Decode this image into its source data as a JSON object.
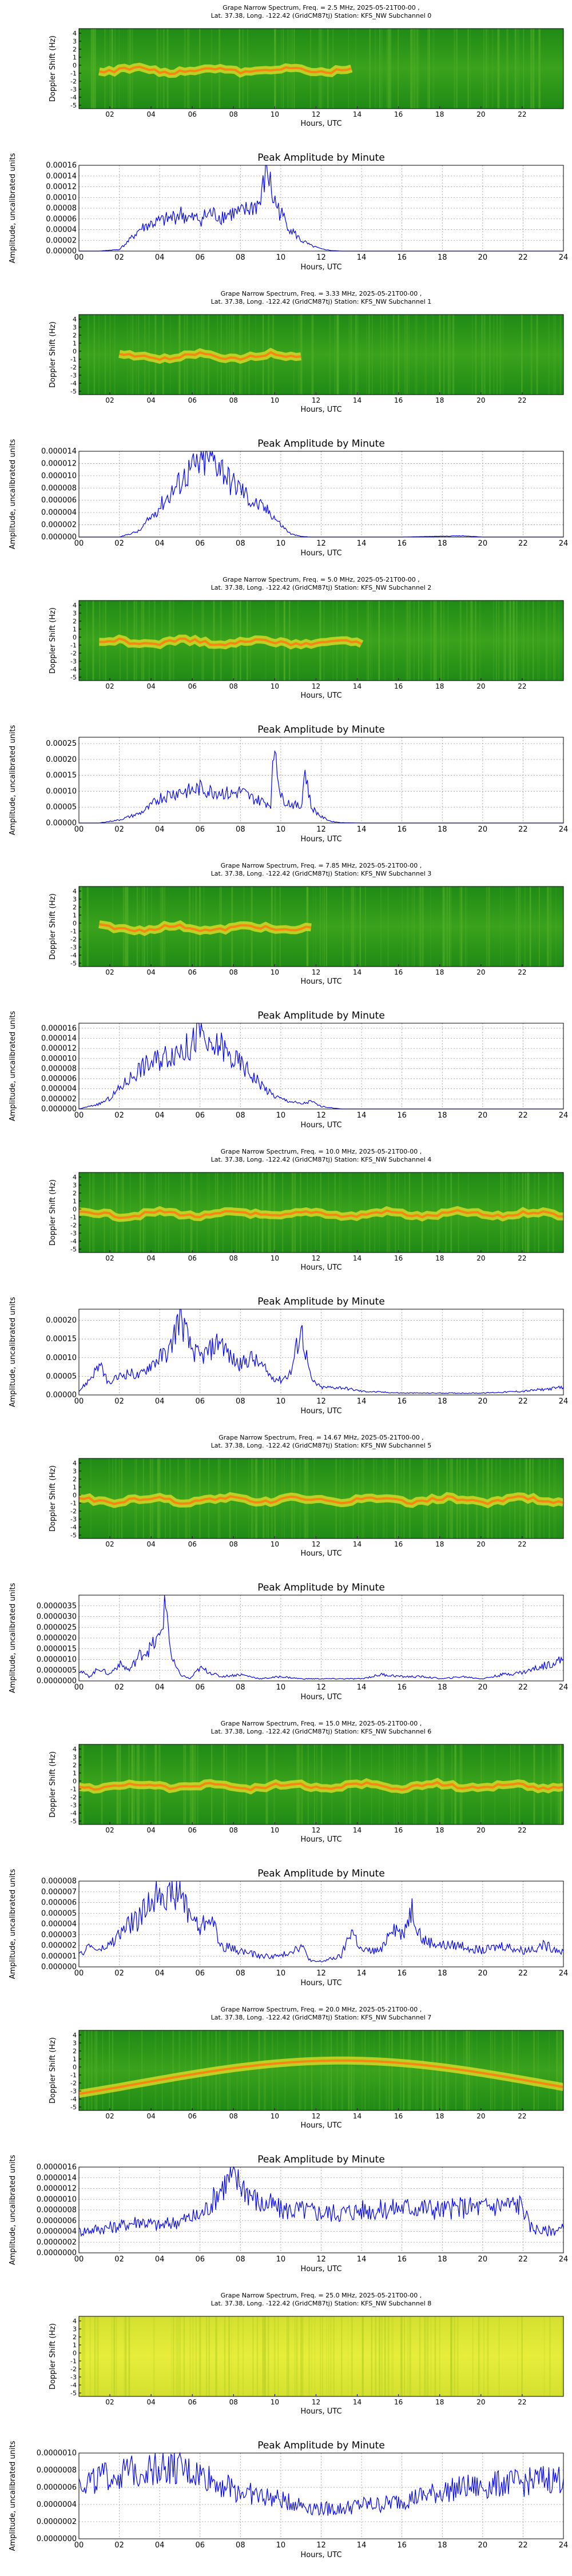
{
  "spectrogram_common": {
    "line2": "Lat.  37.38, Long. -122.42 (GridCM87tj) Station: KFS_NW",
    "ylabel": "Doppler Shift (Hz)",
    "xlabel": "Hours, UTC",
    "yticks": [
      "-5",
      "-4",
      "-3",
      "-2",
      "-1",
      "0",
      "1",
      "2",
      "3",
      "4"
    ],
    "xticks": [
      "02",
      "04",
      "06",
      "08",
      "10",
      "12",
      "14",
      "16",
      "18",
      "20",
      "22"
    ]
  },
  "amplitude_common": {
    "title": "Peak Amplitude by Minute",
    "ylabel": "Amplitude, uncalibrated units",
    "xlabel": "Hours, UTC",
    "xticks": [
      "00",
      "02",
      "04",
      "06",
      "08",
      "10",
      "12",
      "14",
      "16",
      "18",
      "20",
      "22",
      "24"
    ]
  },
  "subchannels": [
    {
      "spectrogram_title": "Grape Narrow Spectrum, Freq. = 2.5 MHz, 2025-05-21T00-00 , Lat.  37.38, Long. -122.42 (GridCM87tj) Station: KFS_NW Subchannel 0",
      "title_line1": "Grape Narrow Spectrum, Freq. = 2.5 MHz, 2025-05-21T00-00 ,",
      "title_suffix": "Subchannel 0",
      "amp_yticks": [
        "0.00000",
        "0.00002",
        "0.00004",
        "0.00006",
        "0.00008",
        "0.00010",
        "0.00012",
        "0.00014",
        "0.00016"
      ],
      "amp_ymax": 0.00016
    },
    {
      "spectrogram_title": "Grape Narrow Spectrum, Freq. = 3.33 MHz, 2025-05-21T00-00 , Lat.  37.38, Long. -122.42 (GridCM87tj) Station: KFS_NW Subchannel 1",
      "title_line1": "Grape Narrow Spectrum, Freq. = 3.33 MHz, 2025-05-21T00-00 ,",
      "title_suffix": "Subchannel 1",
      "amp_yticks": [
        "0.000000",
        "0.000002",
        "0.000004",
        "0.000006",
        "0.000008",
        "0.000010",
        "0.000012",
        "0.000014"
      ],
      "amp_ymax": 1.4e-05
    },
    {
      "spectrogram_title": "Grape Narrow Spectrum, Freq. = 5.0 MHz, 2025-05-21T00-00 , Lat.  37.38, Long. -122.42 (GridCM87tj) Station: KFS_NW Subchannel 2",
      "title_line1": "Grape Narrow Spectrum, Freq. = 5.0 MHz, 2025-05-21T00-00 ,",
      "title_suffix": "Subchannel 2",
      "amp_yticks": [
        "0.00000",
        "0.00005",
        "0.00010",
        "0.00015",
        "0.00020",
        "0.00025"
      ],
      "amp_ymax": 0.00027
    },
    {
      "spectrogram_title": "Grape Narrow Spectrum, Freq. = 7.85 MHz, 2025-05-21T00-00 , Lat.  37.38, Long. -122.42 (GridCM87tj) Station: KFS_NW Subchannel 3",
      "title_line1": "Grape Narrow Spectrum, Freq. = 7.85 MHz, 2025-05-21T00-00 ,",
      "title_suffix": "Subchannel 3",
      "amp_yticks": [
        "0.000000",
        "0.000002",
        "0.000004",
        "0.000006",
        "0.000008",
        "0.000010",
        "0.000012",
        "0.000014",
        "0.000016"
      ],
      "amp_ymax": 1.7e-05
    },
    {
      "spectrogram_title": "Grape Narrow Spectrum, Freq. = 10.0 MHz, 2025-05-21T00-00 , Lat.  37.38, Long. -122.42 (GridCM87tj) Station: KFS_NW Subchannel 4",
      "title_line1": "Grape Narrow Spectrum, Freq. = 10.0 MHz, 2025-05-21T00-00 ,",
      "title_suffix": "Subchannel 4",
      "amp_yticks": [
        "0.00000",
        "0.00005",
        "0.00010",
        "0.00015",
        "0.00020"
      ],
      "amp_ymax": 0.00023
    },
    {
      "spectrogram_title": "Grape Narrow Spectrum, Freq. = 14.67 MHz, 2025-05-21T00-00 , Lat.  37.38, Long. -122.42 (GridCM87tj) Station: KFS_NW Subchannel 5",
      "title_line1": "Grape Narrow Spectrum, Freq. = 14.67 MHz, 2025-05-21T00-00 ,",
      "title_suffix": "Subchannel 5",
      "amp_yticks": [
        "0.0000000",
        "0.0000005",
        "0.0000010",
        "0.0000015",
        "0.0000020",
        "0.0000025",
        "0.0000030",
        "0.0000035"
      ],
      "amp_ymax": 4e-06
    },
    {
      "spectrogram_title": "Grape Narrow Spectrum, Freq. = 15.0 MHz, 2025-05-21T00-00 , Lat.  37.38, Long. -122.42 (GridCM87tj) Station: KFS_NW Subchannel 6",
      "title_line1": "Grape Narrow Spectrum, Freq. = 15.0 MHz, 2025-05-21T00-00 ,",
      "title_suffix": "Subchannel 6",
      "amp_yticks": [
        "0.000000",
        "0.000001",
        "0.000002",
        "0.000003",
        "0.000004",
        "0.000005",
        "0.000006",
        "0.000007",
        "0.000008"
      ],
      "amp_ymax": 8e-06
    },
    {
      "spectrogram_title": "Grape Narrow Spectrum, Freq. = 20.0 MHz, 2025-05-21T00-00 , Lat.  37.38, Long. -122.42 (GridCM87tj) Station: KFS_NW Subchannel 7",
      "title_line1": "Grape Narrow Spectrum, Freq. = 20.0 MHz, 2025-05-21T00-00 ,",
      "title_suffix": "Subchannel 7",
      "amp_yticks": [
        "0.0000000",
        "0.0000002",
        "0.0000004",
        "0.0000006",
        "0.0000008",
        "0.0000010",
        "0.0000012",
        "0.0000014",
        "0.0000016"
      ],
      "amp_ymax": 1.6e-06
    },
    {
      "spectrogram_title": "Grape Narrow Spectrum, Freq. = 25.0 MHz, 2025-05-21T00-00 , Lat.  37.38, Long. -122.42 (GridCM87tj) Station: KFS_NW Subchannel 8",
      "title_line1": "Grape Narrow Spectrum, Freq. = 25.0 MHz, 2025-05-21T00-00 ,",
      "title_suffix": "Subchannel 8",
      "amp_yticks": [
        "0.0000000",
        "0.0000002",
        "0.0000004",
        "0.0000006",
        "0.0000008",
        "0.0000010"
      ],
      "amp_ymax": 1e-06
    }
  ],
  "chart_data": [
    {
      "type": "line",
      "title": "Peak Amplitude by Minute",
      "subchannel": 0,
      "xlabel": "Hours, UTC",
      "ylabel": "Amplitude, uncalibrated units",
      "xlim": [
        0,
        24
      ],
      "ylim": [
        0,
        0.00016
      ],
      "grid": true,
      "x": [
        0,
        1,
        2,
        2.5,
        3,
        3.5,
        4,
        4.5,
        5,
        5.5,
        6,
        6.5,
        7,
        7.5,
        8,
        8.5,
        9,
        9.3,
        9.6,
        10,
        10.5,
        11,
        11.5,
        12,
        12.5,
        13,
        14,
        16,
        18,
        20,
        22,
        24
      ],
      "y": [
        0,
        0,
        3e-06,
        2e-05,
        4e-05,
        5e-05,
        5.5e-05,
        6e-05,
        7e-05,
        6e-05,
        6e-05,
        7e-05,
        6.5e-05,
        7e-05,
        7e-05,
        8e-05,
        9e-05,
        0.00016,
        0.0001,
        7e-05,
        4e-05,
        2e-05,
        1e-05,
        4e-06,
        1e-06,
        0,
        0,
        0,
        0,
        0,
        0,
        0
      ]
    },
    {
      "type": "line",
      "title": "Peak Amplitude by Minute",
      "subchannel": 1,
      "xlabel": "Hours, UTC",
      "ylabel": "Amplitude, uncalibrated units",
      "xlim": [
        0,
        24
      ],
      "ylim": [
        0,
        1.4e-05
      ],
      "grid": true,
      "x": [
        0,
        1,
        2,
        3,
        3.5,
        4,
        4.5,
        5,
        5.5,
        6,
        6.5,
        7,
        7.5,
        8,
        8.5,
        9,
        9.5,
        10,
        10.5,
        11,
        11.5,
        12,
        13,
        16,
        19,
        20,
        22,
        24
      ],
      "y": [
        0,
        0,
        0,
        1e-06,
        3e-06,
        5e-06,
        7e-06,
        9e-06,
        1.1e-05,
        1.2e-05,
        1.3e-05,
        1.2e-05,
        9e-06,
        8e-06,
        6e-06,
        5e-06,
        4e-06,
        2e-06,
        5e-07,
        1e-07,
        0,
        0,
        0,
        0,
        2e-07,
        0,
        0,
        0
      ]
    },
    {
      "type": "line",
      "title": "Peak Amplitude by Minute",
      "subchannel": 2,
      "xlabel": "Hours, UTC",
      "ylabel": "Amplitude, uncalibrated units",
      "xlim": [
        0,
        24
      ],
      "ylim": [
        0,
        0.00027
      ],
      "grid": true,
      "x": [
        0,
        1,
        2,
        3,
        3.5,
        4,
        4.5,
        5,
        5.5,
        6,
        6.5,
        7,
        7.5,
        8,
        8.5,
        9,
        9.5,
        9.7,
        10,
        10.5,
        11,
        11.2,
        11.5,
        12,
        12.5,
        13,
        14,
        16,
        18,
        20,
        22,
        24
      ],
      "y": [
        0,
        0,
        1e-05,
        3e-05,
        5e-05,
        8e-05,
        9e-05,
        0.0001,
        0.0001,
        0.00011,
        0.0001,
        0.0001,
        9e-05,
        0.0001,
        8e-05,
        7e-05,
        6e-05,
        0.00026,
        8e-05,
        6e-05,
        5e-05,
        0.00017,
        5e-05,
        2e-05,
        5e-06,
        1e-06,
        0,
        0,
        0,
        0,
        0,
        0
      ]
    },
    {
      "type": "line",
      "title": "Peak Amplitude by Minute",
      "subchannel": 3,
      "xlabel": "Hours, UTC",
      "ylabel": "Amplitude, uncalibrated units",
      "xlim": [
        0,
        24
      ],
      "ylim": [
        0,
        1.7e-05
      ],
      "grid": true,
      "x": [
        0,
        1,
        1.5,
        2,
        2.5,
        3,
        3.5,
        4,
        4.5,
        5,
        5.5,
        6,
        6.5,
        7,
        7.5,
        8,
        8.5,
        9,
        9.5,
        10,
        11,
        11.5,
        12,
        13,
        14,
        16,
        18,
        20,
        22,
        24
      ],
      "y": [
        0,
        1e-06,
        2e-06,
        4e-06,
        6e-06,
        8e-06,
        9e-06,
        1e-05,
        1.1e-05,
        1.2e-05,
        1.2e-05,
        1.6e-05,
        1.1e-05,
        1.3e-05,
        1e-05,
        9e-06,
        7e-06,
        5e-06,
        3e-06,
        2e-06,
        1e-06,
        1.5e-06,
        5e-07,
        0,
        0,
        0,
        0,
        0,
        0,
        0
      ]
    },
    {
      "type": "line",
      "title": "Peak Amplitude by Minute",
      "subchannel": 4,
      "xlabel": "Hours, UTC",
      "ylabel": "Amplitude, uncalibrated units",
      "xlim": [
        0,
        24
      ],
      "ylim": [
        0,
        0.00023
      ],
      "grid": true,
      "x": [
        0,
        0.5,
        1,
        1.5,
        2,
        2.5,
        3,
        3.5,
        4,
        4.5,
        5,
        5.5,
        6,
        6.5,
        7,
        7.5,
        8,
        8.5,
        9,
        9.5,
        10,
        10.5,
        11,
        11.5,
        12,
        13,
        14,
        16,
        18,
        20,
        22,
        24
      ],
      "y": [
        1e-05,
        4e-05,
        8e-05,
        3e-05,
        5e-05,
        6e-05,
        5e-05,
        8e-05,
        0.0001,
        0.00012,
        0.00022,
        0.00013,
        0.0001,
        0.00012,
        0.00015,
        0.0001,
        8e-05,
        0.0001,
        8e-05,
        5e-05,
        4e-05,
        6e-05,
        0.00018,
        4e-05,
        2e-05,
        2e-05,
        1e-05,
        5e-06,
        5e-06,
        5e-06,
        1e-05,
        2e-05
      ]
    },
    {
      "type": "line",
      "title": "Peak Amplitude by Minute",
      "subchannel": 5,
      "xlabel": "Hours, UTC",
      "ylabel": "Amplitude, uncalibrated units",
      "xlim": [
        0,
        24
      ],
      "ylim": [
        0,
        4e-06
      ],
      "grid": true,
      "x": [
        0,
        0.5,
        1,
        1.5,
        2,
        2.5,
        3,
        3.5,
        4,
        4.3,
        4.6,
        5,
        5.5,
        6,
        7,
        8,
        9,
        10,
        11,
        12,
        13,
        14,
        15,
        16,
        17,
        18,
        19,
        20,
        21,
        22,
        23,
        24
      ],
      "y": [
        5e-07,
        2e-07,
        6e-07,
        3e-07,
        8e-07,
        5e-07,
        1.2e-06,
        1.5e-06,
        2e-06,
        3.7e-06,
        1e-06,
        3e-07,
        1e-07,
        6e-07,
        2e-07,
        3e-07,
        1e-07,
        2e-07,
        1e-07,
        1e-07,
        1e-07,
        1e-07,
        3e-07,
        2e-07,
        2e-07,
        1e-07,
        2e-07,
        1e-07,
        3e-07,
        4e-07,
        7e-07,
        1e-06
      ]
    },
    {
      "type": "line",
      "title": "Peak Amplitude by Minute",
      "subchannel": 6,
      "xlabel": "Hours, UTC",
      "ylabel": "Amplitude, uncalibrated units",
      "xlim": [
        0,
        24
      ],
      "ylim": [
        0,
        8e-06
      ],
      "grid": true,
      "x": [
        0,
        0.5,
        1,
        1.5,
        2,
        2.5,
        3,
        3.5,
        4,
        4.5,
        5,
        5.5,
        6,
        6.5,
        7,
        8,
        9,
        10,
        11,
        11.5,
        12,
        13,
        13.5,
        14,
        15,
        15.5,
        16,
        16.5,
        17,
        18,
        19,
        20,
        21,
        22,
        23,
        24
      ],
      "y": [
        1e-06,
        2e-06,
        1.5e-06,
        2e-06,
        3e-06,
        4e-06,
        4.5e-06,
        6e-06,
        7.5e-06,
        6.5e-06,
        7e-06,
        5e-06,
        3.5e-06,
        5e-06,
        2e-06,
        1.5e-06,
        1e-06,
        1e-06,
        2e-06,
        5e-07,
        5e-07,
        1e-06,
        3.5e-06,
        1.5e-06,
        1.5e-06,
        4e-06,
        3e-06,
        5.5e-06,
        2.5e-06,
        2e-06,
        2e-06,
        1.5e-06,
        2e-06,
        1.5e-06,
        2e-06,
        1.5e-06
      ]
    },
    {
      "type": "line",
      "title": "Peak Amplitude by Minute",
      "subchannel": 7,
      "xlabel": "Hours, UTC",
      "ylabel": "Amplitude, uncalibrated units",
      "xlim": [
        0,
        24
      ],
      "ylim": [
        0,
        1.6e-06
      ],
      "grid": true,
      "x": [
        0,
        1,
        2,
        3,
        4,
        5,
        6,
        6.5,
        7,
        7.5,
        8,
        8.5,
        9,
        9.5,
        10,
        11,
        12,
        13,
        14,
        15,
        16,
        17,
        18,
        19,
        20,
        21,
        22,
        22.3,
        23,
        24
      ],
      "y": [
        4e-07,
        4.5e-07,
        5e-07,
        6e-07,
        5e-07,
        6e-07,
        7e-07,
        9e-07,
        1.2e-06,
        1.4e-06,
        1.3e-06,
        1.1e-06,
        9e-07,
        9e-07,
        8e-07,
        8e-07,
        7.5e-07,
        7.5e-07,
        8e-07,
        8e-07,
        8.5e-07,
        8.5e-07,
        8e-07,
        8.5e-07,
        8.5e-07,
        9e-07,
        9e-07,
        5e-07,
        4e-07,
        4.5e-07
      ]
    },
    {
      "type": "line",
      "title": "Peak Amplitude by Minute",
      "subchannel": 8,
      "xlabel": "Hours, UTC",
      "ylabel": "Amplitude, uncalibrated units",
      "xlim": [
        0,
        24
      ],
      "ylim": [
        0,
        1e-06
      ],
      "grid": true,
      "x": [
        0,
        1,
        2,
        3,
        4,
        5,
        6,
        7,
        8,
        9,
        10,
        11,
        12,
        13,
        14,
        15,
        16,
        17,
        18,
        19,
        20,
        21,
        22,
        23,
        24
      ],
      "y": [
        6.5e-07,
        7e-07,
        7.5e-07,
        8e-07,
        8.5e-07,
        8e-07,
        7.5e-07,
        6.5e-07,
        5.5e-07,
        5e-07,
        4.5e-07,
        4e-07,
        3.5e-07,
        3.5e-07,
        4e-07,
        4e-07,
        4.5e-07,
        5e-07,
        5.5e-07,
        6e-07,
        6e-07,
        6.5e-07,
        6.5e-07,
        7e-07,
        7e-07
      ]
    }
  ]
}
